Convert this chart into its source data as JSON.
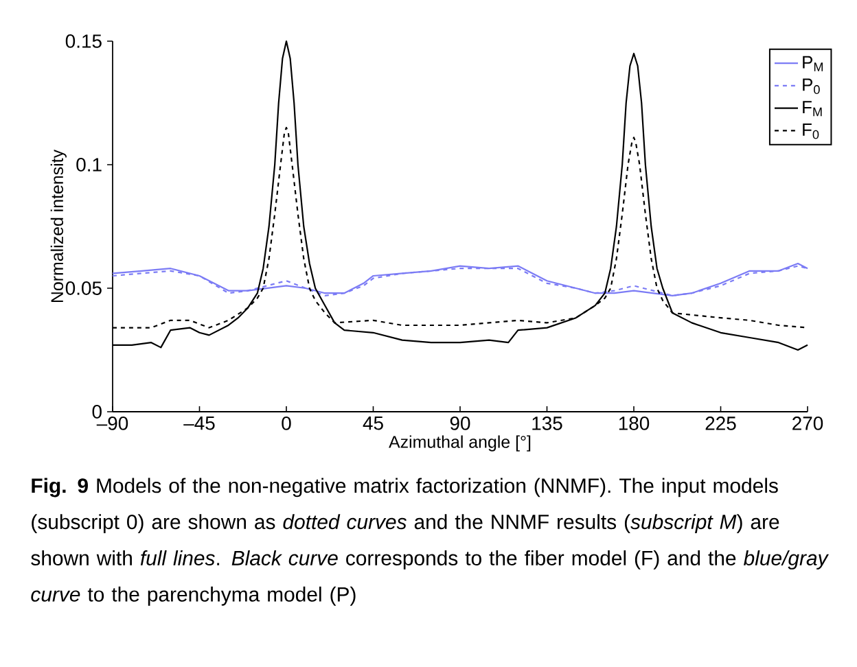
{
  "chart_data": {
    "type": "line",
    "xlabel": "Azimuthal angle [°]",
    "ylabel": "Normalized intensity",
    "xlim": [
      -90,
      270
    ],
    "xticks": [
      {
        "value": -90,
        "label": "–90"
      },
      {
        "value": -45,
        "label": "–45"
      },
      0,
      45,
      90,
      135,
      180,
      225,
      270
    ],
    "ylim": [
      0,
      0.15
    ],
    "yticks": [
      0,
      0.05,
      0.1,
      0.15
    ],
    "grid": false,
    "legend": "top right",
    "marker": "none",
    "annotations": [
      "**Fig. 9**  Models of the non-negative matrix factorization (NNMF). The input models (subscript 0) are shown as *dotted curves* and the NNMF results (*subscript M*) are shown with *full lines*. *Black curve* corresponds to the fiber model (F) and the *blue/gray curve* to the parenchyma model (P)"
    ],
    "series": [
      {
        "name": "P$_{M}$",
        "color": "#7b7bf5",
        "line_style": "solid",
        "x": [
          -90,
          -75,
          -60,
          -45,
          -30,
          -20,
          -10,
          0,
          10,
          20,
          30,
          40,
          45,
          60,
          75,
          90,
          105,
          120,
          135,
          150,
          160,
          170,
          180,
          190,
          200,
          210,
          225,
          240,
          255,
          265,
          270
        ],
        "values": [
          0.056,
          0.057,
          0.058,
          0.055,
          0.049,
          0.049,
          0.05,
          0.051,
          0.05,
          0.048,
          0.048,
          0.052,
          0.055,
          0.056,
          0.057,
          0.059,
          0.058,
          0.059,
          0.053,
          0.05,
          0.048,
          0.048,
          0.049,
          0.048,
          0.047,
          0.048,
          0.052,
          0.057,
          0.057,
          0.06,
          0.058
        ]
      },
      {
        "name": "P$_{0}$",
        "color": "#7b7bf5",
        "line_style": "dashed",
        "x": [
          -90,
          -75,
          -60,
          -45,
          -30,
          -20,
          -10,
          0,
          10,
          20,
          30,
          40,
          45,
          60,
          75,
          90,
          105,
          120,
          135,
          150,
          160,
          170,
          180,
          190,
          200,
          210,
          225,
          240,
          255,
          265,
          270
        ],
        "values": [
          0.055,
          0.056,
          0.057,
          0.055,
          0.048,
          0.049,
          0.051,
          0.053,
          0.05,
          0.047,
          0.048,
          0.051,
          0.054,
          0.056,
          0.057,
          0.058,
          0.058,
          0.058,
          0.052,
          0.05,
          0.048,
          0.049,
          0.051,
          0.049,
          0.047,
          0.048,
          0.051,
          0.056,
          0.057,
          0.059,
          0.058
        ]
      },
      {
        "name": "F$_{M}$",
        "color": "#000000",
        "line_style": "solid",
        "x": [
          -90,
          -80,
          -70,
          -65,
          -60,
          -50,
          -45,
          -40,
          -30,
          -25,
          -20,
          -15,
          -12,
          -9,
          -6,
          -4,
          -2,
          0,
          2,
          4,
          6,
          9,
          12,
          15,
          20,
          25,
          30,
          45,
          60,
          75,
          90,
          105,
          115,
          120,
          135,
          150,
          160,
          165,
          168,
          171,
          174,
          176,
          178,
          180,
          182,
          184,
          186,
          189,
          192,
          195,
          200,
          210,
          225,
          240,
          255,
          265,
          270
        ],
        "values": [
          0.027,
          0.027,
          0.028,
          0.026,
          0.033,
          0.034,
          0.032,
          0.031,
          0.035,
          0.038,
          0.042,
          0.048,
          0.058,
          0.075,
          0.1,
          0.125,
          0.143,
          0.15,
          0.143,
          0.125,
          0.1,
          0.075,
          0.06,
          0.05,
          0.043,
          0.036,
          0.033,
          0.032,
          0.029,
          0.028,
          0.028,
          0.029,
          0.028,
          0.033,
          0.034,
          0.038,
          0.043,
          0.048,
          0.058,
          0.075,
          0.1,
          0.125,
          0.14,
          0.145,
          0.14,
          0.125,
          0.1,
          0.075,
          0.058,
          0.05,
          0.04,
          0.036,
          0.032,
          0.03,
          0.028,
          0.025,
          0.027
        ]
      },
      {
        "name": "F$_{0}$",
        "color": "#000000",
        "line_style": "dashed",
        "x": [
          -90,
          -70,
          -60,
          -50,
          -40,
          -30,
          -20,
          -15,
          -12,
          -9,
          -6,
          -3,
          -1,
          0,
          1,
          3,
          6,
          9,
          12,
          15,
          20,
          25,
          45,
          60,
          90,
          105,
          120,
          135,
          150,
          160,
          165,
          168,
          171,
          174,
          177,
          179,
          180,
          181,
          183,
          186,
          189,
          192,
          195,
          200,
          225,
          240,
          255,
          270
        ],
        "values": [
          0.034,
          0.034,
          0.037,
          0.037,
          0.034,
          0.037,
          0.042,
          0.046,
          0.05,
          0.062,
          0.08,
          0.1,
          0.113,
          0.115,
          0.113,
          0.1,
          0.08,
          0.062,
          0.05,
          0.045,
          0.04,
          0.036,
          0.037,
          0.035,
          0.035,
          0.036,
          0.037,
          0.036,
          0.038,
          0.043,
          0.046,
          0.05,
          0.062,
          0.08,
          0.1,
          0.109,
          0.111,
          0.109,
          0.1,
          0.08,
          0.062,
          0.05,
          0.045,
          0.04,
          0.038,
          0.037,
          0.035,
          0.034
        ]
      }
    ]
  }
}
